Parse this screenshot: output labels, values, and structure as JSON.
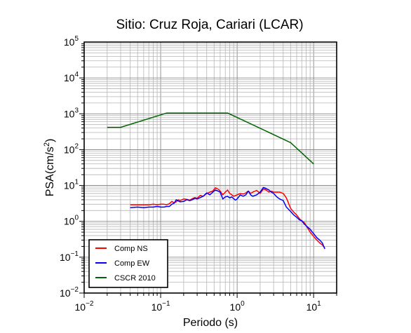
{
  "chart_data": {
    "type": "line",
    "title": "Sitio: Cruz Roja, Cariari (LCAR)",
    "xlabel": "Periodo (s)",
    "ylabel_main": "PSA(cm/s",
    "ylabel_sup": "2",
    "ylabel_close": ")",
    "xscale": "log",
    "yscale": "log",
    "xlim": [
      0.01,
      20
    ],
    "ylim": [
      0.01,
      100000
    ],
    "x_ticks": [
      {
        "value": 0.01,
        "base": "10",
        "exp": "−2"
      },
      {
        "value": 0.1,
        "base": "10",
        "exp": "−1"
      },
      {
        "value": 1,
        "base": "10",
        "exp": "0"
      },
      {
        "value": 10,
        "base": "10",
        "exp": "1"
      }
    ],
    "y_ticks": [
      {
        "value": 0.01,
        "base": "10",
        "exp": "−2"
      },
      {
        "value": 0.1,
        "base": "10",
        "exp": "−1"
      },
      {
        "value": 1,
        "base": "10",
        "exp": "0"
      },
      {
        "value": 10,
        "base": "10",
        "exp": "1"
      },
      {
        "value": 100,
        "base": "10",
        "exp": "2"
      },
      {
        "value": 1000,
        "base": "10",
        "exp": "3"
      },
      {
        "value": 10000,
        "base": "10",
        "exp": "4"
      },
      {
        "value": 100000,
        "base": "10",
        "exp": "5"
      }
    ],
    "grid": true,
    "legend_position": "bottom-left",
    "series": [
      {
        "name": "Comp NS",
        "color": "#ff0000",
        "points": [
          [
            0.04,
            2.9
          ],
          [
            0.05,
            2.9
          ],
          [
            0.06,
            2.9
          ],
          [
            0.07,
            2.9
          ],
          [
            0.08,
            3.0
          ],
          [
            0.09,
            2.9
          ],
          [
            0.1,
            3.0
          ],
          [
            0.11,
            3.0
          ],
          [
            0.12,
            2.9
          ],
          [
            0.13,
            3.1
          ],
          [
            0.14,
            3.6
          ],
          [
            0.15,
            3.3
          ],
          [
            0.16,
            3.5
          ],
          [
            0.17,
            4.0
          ],
          [
            0.18,
            3.8
          ],
          [
            0.2,
            4.2
          ],
          [
            0.22,
            4.1
          ],
          [
            0.24,
            3.9
          ],
          [
            0.26,
            4.3
          ],
          [
            0.28,
            4.6
          ],
          [
            0.3,
            4.4
          ],
          [
            0.33,
            5.3
          ],
          [
            0.36,
            5.0
          ],
          [
            0.4,
            6.0
          ],
          [
            0.44,
            6.5
          ],
          [
            0.48,
            7.0
          ],
          [
            0.52,
            8.6
          ],
          [
            0.56,
            8.0
          ],
          [
            0.6,
            7.0
          ],
          [
            0.65,
            5.5
          ],
          [
            0.7,
            6.5
          ],
          [
            0.75,
            7.5
          ],
          [
            0.8,
            6.0
          ],
          [
            0.85,
            5.5
          ],
          [
            0.9,
            5.0
          ],
          [
            1.0,
            5.5
          ],
          [
            1.1,
            6.0
          ],
          [
            1.2,
            5.8
          ],
          [
            1.3,
            6.2
          ],
          [
            1.4,
            7.0
          ],
          [
            1.5,
            6.0
          ],
          [
            1.6,
            6.5
          ],
          [
            1.8,
            7.3
          ],
          [
            2.0,
            6.0
          ],
          [
            2.2,
            8.0
          ],
          [
            2.4,
            7.5
          ],
          [
            2.6,
            6.5
          ],
          [
            2.8,
            7.0
          ],
          [
            3.0,
            6.5
          ],
          [
            3.3,
            6.5
          ],
          [
            3.6,
            6.5
          ],
          [
            4.0,
            6.0
          ],
          [
            4.4,
            4.5
          ],
          [
            5.0,
            2.3
          ],
          [
            5.5,
            1.8
          ],
          [
            6.0,
            1.5
          ],
          [
            6.5,
            1.2
          ],
          [
            7.0,
            1.0
          ],
          [
            7.5,
            0.95
          ],
          [
            8.0,
            0.75
          ],
          [
            9.0,
            0.5
          ],
          [
            10.0,
            0.38
          ],
          [
            11.0,
            0.3
          ],
          [
            12.0,
            0.25
          ],
          [
            13.0,
            0.22
          ],
          [
            14.0,
            0.18
          ]
        ]
      },
      {
        "name": "Comp EW",
        "color": "#0000ff",
        "points": [
          [
            0.04,
            2.4
          ],
          [
            0.05,
            2.5
          ],
          [
            0.06,
            2.4
          ],
          [
            0.07,
            2.5
          ],
          [
            0.08,
            2.5
          ],
          [
            0.09,
            2.6
          ],
          [
            0.1,
            2.5
          ],
          [
            0.11,
            2.5
          ],
          [
            0.12,
            2.6
          ],
          [
            0.13,
            2.6
          ],
          [
            0.14,
            3.0
          ],
          [
            0.15,
            3.2
          ],
          [
            0.16,
            4.0
          ],
          [
            0.17,
            3.7
          ],
          [
            0.18,
            3.5
          ],
          [
            0.2,
            3.6
          ],
          [
            0.22,
            4.0
          ],
          [
            0.24,
            3.8
          ],
          [
            0.26,
            4.0
          ],
          [
            0.28,
            4.4
          ],
          [
            0.3,
            4.2
          ],
          [
            0.33,
            4.6
          ],
          [
            0.36,
            5.0
          ],
          [
            0.4,
            6.2
          ],
          [
            0.44,
            5.5
          ],
          [
            0.48,
            6.5
          ],
          [
            0.52,
            7.5
          ],
          [
            0.56,
            7.0
          ],
          [
            0.6,
            6.5
          ],
          [
            0.65,
            4.2
          ],
          [
            0.7,
            4.8
          ],
          [
            0.75,
            5.0
          ],
          [
            0.8,
            4.5
          ],
          [
            0.85,
            4.8
          ],
          [
            0.9,
            4.3
          ],
          [
            0.95,
            3.9
          ],
          [
            1.0,
            4.2
          ],
          [
            1.1,
            5.5
          ],
          [
            1.2,
            5.0
          ],
          [
            1.3,
            5.5
          ],
          [
            1.4,
            7.0
          ],
          [
            1.5,
            5.5
          ],
          [
            1.6,
            5.0
          ],
          [
            1.8,
            5.5
          ],
          [
            2.0,
            6.5
          ],
          [
            2.2,
            8.8
          ],
          [
            2.4,
            8.2
          ],
          [
            2.6,
            7.5
          ],
          [
            2.8,
            6.5
          ],
          [
            3.0,
            6.0
          ],
          [
            3.3,
            4.8
          ],
          [
            3.6,
            4.2
          ],
          [
            4.0,
            3.8
          ],
          [
            4.4,
            2.5
          ],
          [
            5.0,
            1.9
          ],
          [
            5.5,
            1.5
          ],
          [
            6.0,
            1.3
          ],
          [
            6.5,
            1.1
          ],
          [
            7.0,
            1.05
          ],
          [
            7.5,
            0.85
          ],
          [
            8.0,
            0.75
          ],
          [
            9.0,
            0.6
          ],
          [
            10.0,
            0.45
          ],
          [
            11.0,
            0.35
          ],
          [
            12.0,
            0.3
          ],
          [
            13.0,
            0.25
          ],
          [
            14.0,
            0.17
          ]
        ]
      },
      {
        "name": "CSCR 2010",
        "color": "#006400",
        "points": [
          [
            0.02,
            420
          ],
          [
            0.03,
            420
          ],
          [
            0.12,
            1050
          ],
          [
            0.75,
            1050
          ],
          [
            5.0,
            157
          ],
          [
            10.0,
            40
          ]
        ]
      }
    ]
  }
}
